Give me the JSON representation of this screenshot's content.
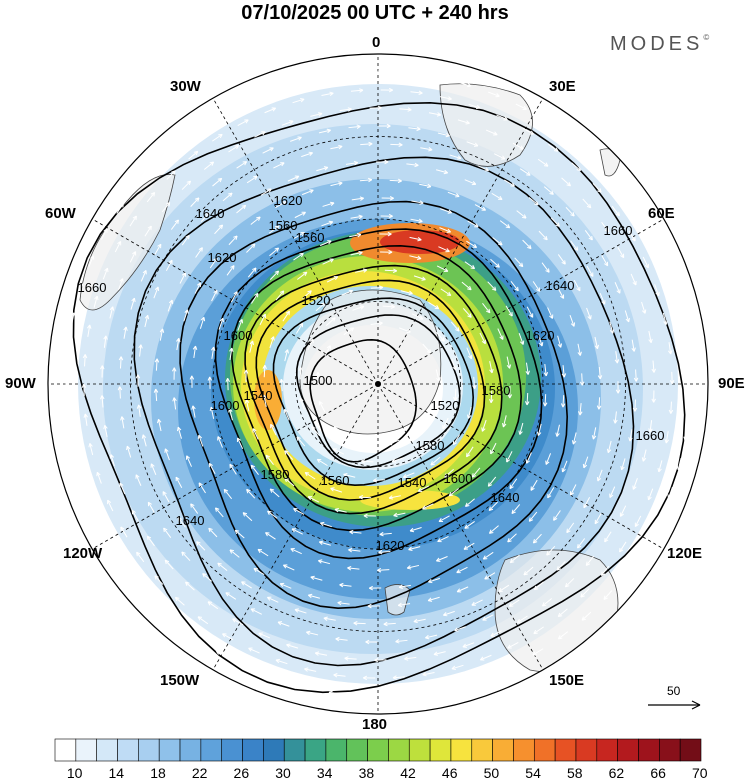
{
  "map": {
    "title": "07/10/2025  00 UTC  + 240 hrs",
    "brand": "MODES",
    "brand_mark": "©",
    "longitude_labels": [
      {
        "text": "0",
        "lon": 0
      },
      {
        "text": "30E",
        "lon": 30
      },
      {
        "text": "60E",
        "lon": 60
      },
      {
        "text": "90E",
        "lon": 90
      },
      {
        "text": "120E",
        "lon": 120
      },
      {
        "text": "150E",
        "lon": 150
      },
      {
        "text": "180",
        "lon": 180
      },
      {
        "text": "150W",
        "lon": -150
      },
      {
        "text": "120W",
        "lon": -120
      },
      {
        "text": "90W",
        "lon": -90
      },
      {
        "text": "60W",
        "lon": -60
      },
      {
        "text": "30W",
        "lon": -30
      }
    ],
    "contour_labels": [
      "1500",
      "1520",
      "1520",
      "1540",
      "1540",
      "1560",
      "1560",
      "1560",
      "1580",
      "1580",
      "1580",
      "1600",
      "1600",
      "1600",
      "1620",
      "1620",
      "1620",
      "1620",
      "1640",
      "1640",
      "1640",
      "1640",
      "1660",
      "1660",
      "1660"
    ],
    "reference_vector": {
      "label": "50"
    },
    "colorbar": {
      "ticks": [
        "10",
        "14",
        "18",
        "22",
        "26",
        "30",
        "34",
        "38",
        "42",
        "46",
        "50",
        "54",
        "58",
        "62",
        "66",
        "70"
      ],
      "colors": [
        "#ffffff",
        "#eaf3fb",
        "#d4e8f8",
        "#bfdcf5",
        "#a8cff0",
        "#8fc1ea",
        "#77b2e3",
        "#5fa2db",
        "#4a91d2",
        "#3a83c8",
        "#2e7ab8",
        "#34919a",
        "#3aa585",
        "#4bb56b",
        "#62c25a",
        "#7cce4c",
        "#9cd843",
        "#bee03c",
        "#dfe63a",
        "#f7e33e",
        "#f9c93b",
        "#f9ad35",
        "#f6902e",
        "#f07128",
        "#e75224",
        "#d93a22",
        "#c72620",
        "#b31a1e",
        "#9e131c",
        "#88101a",
        "#730d17"
      ]
    }
  }
}
